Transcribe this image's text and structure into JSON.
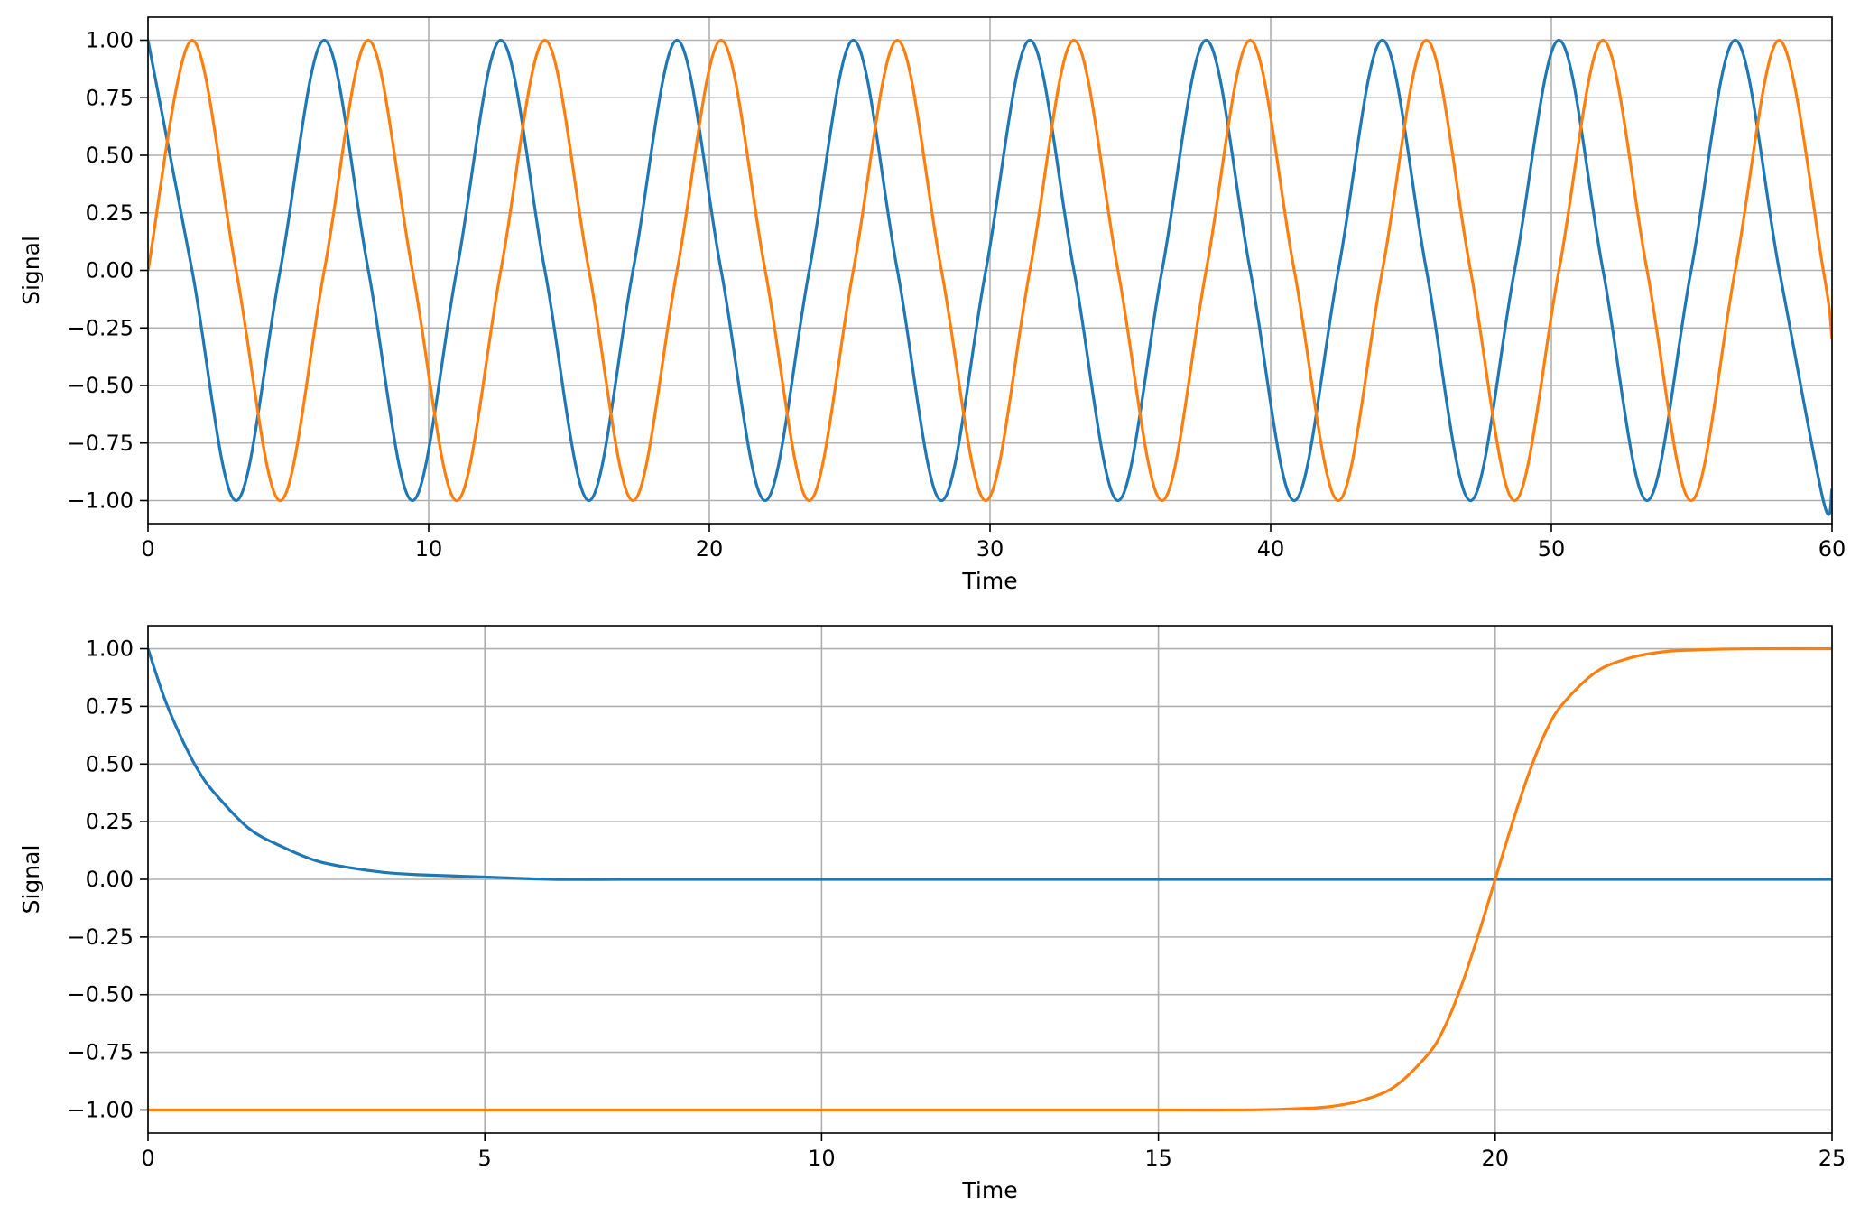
{
  "chart_data": [
    {
      "type": "line",
      "title": "",
      "xlabel": "Time",
      "ylabel": "Signal",
      "xlim": [
        0,
        60
      ],
      "ylim": [
        -1.1,
        1.1
      ],
      "grid": true,
      "legend": "none",
      "xticks": [
        0,
        10,
        20,
        30,
        40,
        50,
        60
      ],
      "yticks": [
        1.0,
        0.75,
        0.5,
        0.25,
        0.0,
        -0.25,
        -0.5,
        -0.75,
        -1.0
      ],
      "xtick_labels": [
        "0",
        "10",
        "20",
        "30",
        "40",
        "50",
        "60"
      ],
      "ytick_labels": [
        "1.00",
        "0.75",
        "0.50",
        "0.25",
        "0.00",
        "−0.25",
        "−0.50",
        "−0.75",
        "−1.00"
      ],
      "series": [
        {
          "color": "#1f77b4",
          "x": [
            0,
            1.57,
            3.14,
            4.71,
            6.28,
            7.85,
            9.42,
            11.0,
            12.57,
            14.14,
            15.71,
            17.28,
            18.85,
            20.42,
            21.99,
            23.56,
            25.13,
            26.7,
            28.27,
            29.85,
            31.42,
            32.99,
            34.56,
            36.13,
            37.7,
            39.27,
            40.84,
            42.41,
            43.98,
            45.55,
            47.12,
            48.69,
            50.27,
            51.84,
            53.41,
            54.98,
            56.55,
            58.12,
            59.69,
            60
          ],
          "y": [
            1,
            0,
            -1,
            0,
            1,
            0,
            -1,
            0,
            1,
            0,
            -1,
            0,
            1,
            0,
            -1,
            0,
            1,
            0,
            -1,
            0,
            1,
            0,
            -1,
            0,
            1,
            0,
            -1,
            0,
            1,
            0,
            -1,
            0,
            1,
            0,
            -1,
            0,
            1,
            0,
            -1,
            -0.95
          ]
        },
        {
          "color": "#ff7f0e",
          "x": [
            0,
            1.57,
            3.14,
            4.71,
            6.28,
            7.85,
            9.42,
            11.0,
            12.57,
            14.14,
            15.71,
            17.28,
            18.85,
            20.42,
            21.99,
            23.56,
            25.13,
            26.7,
            28.27,
            29.85,
            31.42,
            32.99,
            34.56,
            36.13,
            37.7,
            39.27,
            40.84,
            42.41,
            43.98,
            45.55,
            47.12,
            48.69,
            50.27,
            51.84,
            53.41,
            54.98,
            56.55,
            58.12,
            59.69,
            60
          ],
          "y": [
            0,
            1,
            0,
            -1,
            0,
            1,
            0,
            -1,
            0,
            1,
            0,
            -1,
            0,
            1,
            0,
            -1,
            0,
            1,
            0,
            -1,
            0,
            1,
            0,
            -1,
            0,
            1,
            0,
            -1,
            0,
            1,
            0,
            -1,
            0,
            1,
            0,
            -1,
            0,
            1,
            0,
            -0.3
          ]
        }
      ]
    },
    {
      "type": "line",
      "title": "",
      "xlabel": "Time",
      "ylabel": "Signal",
      "xlim": [
        0,
        25
      ],
      "ylim": [
        -1.1,
        1.1
      ],
      "grid": true,
      "legend": "none",
      "xticks": [
        0,
        5,
        10,
        15,
        20,
        25
      ],
      "yticks": [
        1.0,
        0.75,
        0.5,
        0.25,
        0.0,
        -0.25,
        -0.5,
        -0.75,
        -1.0
      ],
      "xtick_labels": [
        "0",
        "5",
        "10",
        "15",
        "20",
        "25"
      ],
      "ytick_labels": [
        "1.00",
        "0.75",
        "0.50",
        "0.25",
        "0.00",
        "−0.25",
        "−0.50",
        "−0.75",
        "−1.00"
      ],
      "series": [
        {
          "color": "#1f77b4",
          "x": [
            0,
            0.25,
            0.5,
            0.75,
            1,
            1.5,
            2,
            2.5,
            3,
            3.5,
            4,
            5,
            6,
            7,
            8,
            10,
            15,
            20,
            25
          ],
          "y": [
            1,
            0.78,
            0.61,
            0.47,
            0.37,
            0.22,
            0.14,
            0.08,
            0.05,
            0.03,
            0.02,
            0.01,
            0.0,
            0.0,
            0.0,
            0.0,
            0.0,
            0.0,
            0.0
          ]
        },
        {
          "color": "#ff7f0e",
          "x": [
            0,
            5,
            10,
            15,
            16,
            16.5,
            17,
            17.5,
            18,
            18.5,
            19,
            19.25,
            19.5,
            19.75,
            20,
            20.25,
            20.5,
            20.75,
            21,
            21.5,
            22,
            22.5,
            23,
            23.5,
            24,
            25
          ],
          "y": [
            -1,
            -1,
            -1,
            -1,
            -1,
            -0.999,
            -0.995,
            -0.987,
            -0.96,
            -0.9,
            -0.76,
            -0.64,
            -0.46,
            -0.24,
            0,
            0.24,
            0.46,
            0.64,
            0.76,
            0.9,
            0.96,
            0.987,
            0.995,
            0.999,
            1,
            1
          ]
        }
      ]
    }
  ]
}
